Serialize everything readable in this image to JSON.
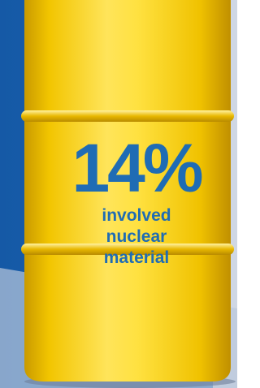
{
  "stat": {
    "value": "14%",
    "caption_lines": [
      "involved",
      "nuclear",
      "material"
    ]
  }
}
